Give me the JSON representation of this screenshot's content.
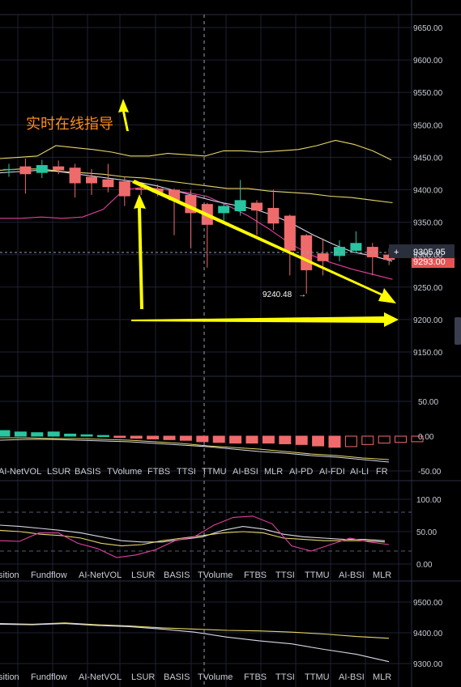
{
  "colors": {
    "background": "#000000",
    "grid": "#1e2233",
    "up": "#26c6a0",
    "down": "#ef6b6b",
    "bollinger": "#e6d66a",
    "ma_white": "#d8d8e8",
    "ma_pink": "#e040a0",
    "annotation": "#ffff00",
    "note_text": "#ff8c1a"
  },
  "annotation_text": "实时在线指导",
  "main": {
    "y_labels": [
      "9650.00",
      "9600.00",
      "9550.00",
      "9500.00",
      "9450.00",
      "9400.00",
      "9350.00",
      "9300.00",
      "9250.00",
      "9200.00",
      "9150.00"
    ],
    "current_price": "9305.95",
    "current_price_sub": "9293.00",
    "low_label": "9240.48",
    "low_arrow": "→",
    "crosshair_plus": "+",
    "candles": [
      {
        "o": 9432,
        "c": 9432,
        "h": 9440,
        "l": 9420
      },
      {
        "o": 9436,
        "c": 9424,
        "h": 9448,
        "l": 9394
      },
      {
        "o": 9426,
        "c": 9438,
        "h": 9446,
        "l": 9418
      },
      {
        "o": 9436,
        "c": 9430,
        "h": 9445,
        "l": 9424
      },
      {
        "o": 9434,
        "c": 9410,
        "h": 9440,
        "l": 9388
      },
      {
        "o": 9420,
        "c": 9410,
        "h": 9432,
        "l": 9392
      },
      {
        "o": 9416,
        "c": 9404,
        "h": 9440,
        "l": 9396
      },
      {
        "o": 9413,
        "c": 9390,
        "h": 9420,
        "l": 9375
      },
      {
        "o": 9402,
        "c": 9400,
        "h": 9412,
        "l": 9392
      },
      {
        "o": 9402,
        "c": 9396,
        "h": 9408,
        "l": 9390
      },
      {
        "o": 9400,
        "c": 9384,
        "h": 9402,
        "l": 9330
      },
      {
        "o": 9392,
        "c": 9364,
        "h": 9400,
        "l": 9310
      },
      {
        "o": 9378,
        "c": 9346,
        "h": 9380,
        "l": 9280
      },
      {
        "o": 9364,
        "c": 9375,
        "h": 9380,
        "l": 9352
      },
      {
        "o": 9367,
        "c": 9384,
        "h": 9415,
        "l": 9360
      },
      {
        "o": 9380,
        "c": 9368,
        "h": 9384,
        "l": 9330
      },
      {
        "o": 9372,
        "c": 9348,
        "h": 9400,
        "l": 9338
      },
      {
        "o": 9360,
        "c": 9306,
        "h": 9362,
        "l": 9268
      },
      {
        "o": 9330,
        "c": 9276,
        "h": 9332,
        "l": 9240
      },
      {
        "o": 9302,
        "c": 9290,
        "h": 9325,
        "l": 9268
      },
      {
        "o": 9298,
        "c": 9312,
        "h": 9322,
        "l": 9290
      },
      {
        "o": 9306,
        "c": 9318,
        "h": 9336,
        "l": 9302
      },
      {
        "o": 9312,
        "c": 9296,
        "h": 9318,
        "l": 9268
      },
      {
        "o": 9300,
        "c": 9292,
        "h": 9310,
        "l": 9284
      }
    ],
    "bb_upper": [
      9448,
      9450,
      9452,
      9468,
      9465,
      9462,
      9458,
      9452,
      9452,
      9456,
      9454,
      9452,
      9460,
      9460,
      9458,
      9460,
      9462,
      9468,
      9476,
      9470,
      9460,
      9446
    ],
    "bb_mid": [
      9430,
      9432,
      9432,
      9428,
      9426,
      9424,
      9420,
      9418,
      9414,
      9410,
      9406,
      9402,
      9402,
      9398,
      9396,
      9394,
      9390,
      9388,
      9384,
      9380
    ],
    "bb_lower": [
      9356,
      9356,
      9358,
      9356,
      9358,
      9370,
      9400,
      9404,
      9400,
      9396,
      9390,
      9376,
      9360,
      9340,
      9318,
      9300,
      9288,
      9278,
      9270,
      9262
    ],
    "ma_white": [
      9426,
      9428,
      9430,
      9428,
      9424,
      9420,
      9416,
      9412,
      9406,
      9398,
      9390,
      9382,
      9376,
      9370,
      9360,
      9346,
      9330,
      9316,
      9304,
      9298,
      9290
    ],
    "ma_pink": [
      9356,
      9356,
      9356,
      9358,
      9360,
      9370,
      9400,
      9404,
      9400,
      9396,
      9390,
      9376,
      9360,
      9340,
      9318,
      9300,
      9290,
      9282,
      9275,
      9268
    ]
  },
  "volume": {
    "y_labels": [
      "50.00",
      "0.00",
      "-50.00"
    ],
    "x_labels": [
      "AI-NetVOL",
      "LSUR",
      "BASIS",
      "TVolume",
      "FTBS",
      "TTSI",
      "TTMU",
      "AI-BSI",
      "MLR",
      "AI-PD",
      "AI-FDI",
      "AI-LI",
      "FR"
    ],
    "bars": [
      8,
      6,
      5,
      6,
      3,
      2,
      1,
      -2,
      -3,
      -4,
      -5,
      -6,
      -8,
      -9,
      -10,
      -10,
      -10,
      -11,
      -12,
      -14,
      -16,
      -15,
      -12,
      -10,
      -9,
      -8
    ]
  },
  "oscillator": {
    "y_labels": [
      "100.00",
      "50.00",
      "0.00"
    ],
    "x_labels": [
      "sition",
      "Fundflow",
      "AI-NetVOL",
      "LSUR",
      "BASIS",
      "TVolume",
      "FTBS",
      "TTSI",
      "TTMU",
      "AI-BSI",
      "MLR"
    ],
    "pink": [
      36,
      35,
      48,
      48,
      32,
      24,
      10,
      14,
      22,
      36,
      42,
      60,
      72,
      74,
      62,
      28,
      20,
      30,
      40,
      34,
      30
    ],
    "yellow": [
      52,
      50,
      46,
      44,
      40,
      32,
      28,
      30,
      36,
      40,
      44,
      48,
      50,
      48,
      40,
      38,
      36,
      36,
      36,
      34
    ],
    "white": [
      60,
      58,
      55,
      52,
      48,
      42,
      36,
      34,
      34,
      38,
      42,
      52,
      58,
      54,
      46,
      42,
      40,
      38,
      38,
      36
    ]
  },
  "bottom": {
    "y_labels": [
      "9500.00",
      "9400.00",
      "9300.00"
    ],
    "x_labels": [
      "sition",
      "Fundflow",
      "AI-NetVOL",
      "LSUR",
      "BASIS",
      "TVolume",
      "FTBS",
      "TTSI",
      "TTMU",
      "AI-BSI",
      "MLR"
    ],
    "yellow": [
      9430,
      9428,
      9432,
      9426,
      9422,
      9416,
      9412,
      9408,
      9406,
      9402,
      9396,
      9388,
      9382
    ],
    "white": [
      9428,
      9426,
      9430,
      9424,
      9420,
      9412,
      9402,
      9386,
      9374,
      9364,
      9346,
      9330,
      9306
    ]
  }
}
